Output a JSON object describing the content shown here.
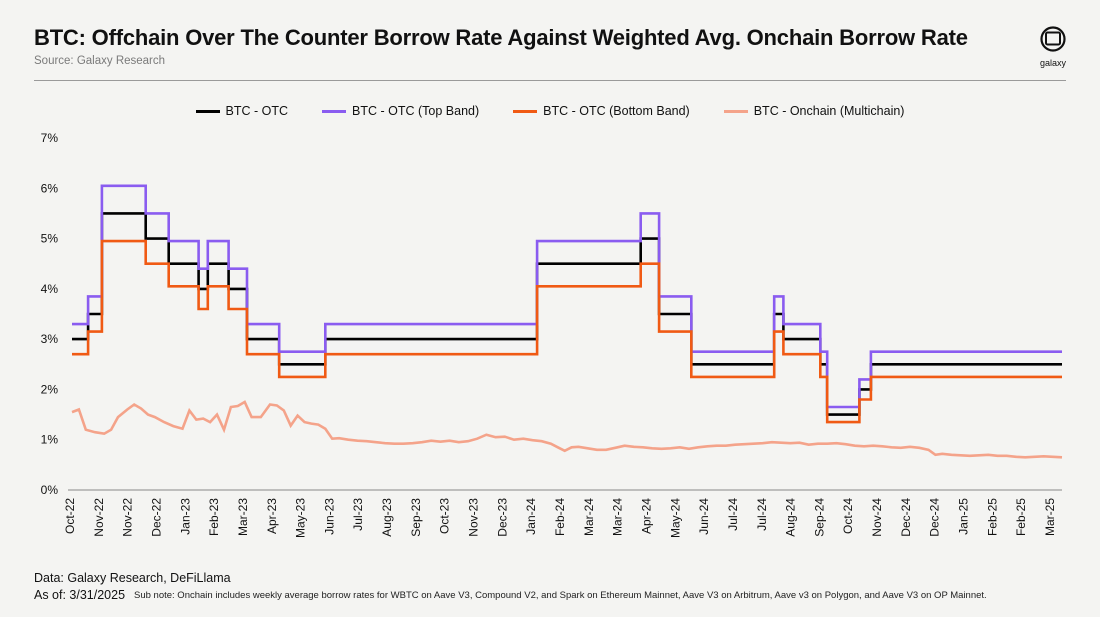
{
  "header": {
    "title": "BTC: Offchain Over The Counter Borrow Rate Against Weighted Avg. Onchain Borrow Rate",
    "source": "Source: Galaxy Research",
    "logo_text": "galaxy"
  },
  "footer": {
    "data_line": "Data: Galaxy Research, DeFiLlama",
    "as_of": "As of: 3/31/2025",
    "sub_note": "Sub note: Onchain includes weekly average borrow rates for WBTC on Aave V3, Compound V2, and Spark on Ethereum Mainnet, Aave V3 on Arbitrum, Aave v3 on Polygon, and Aave V3 on OP Mainnet."
  },
  "chart_data": {
    "type": "line",
    "title": "BTC: Offchain Over The Counter Borrow Rate Against Weighted Avg. Onchain Borrow Rate",
    "xlabel": "",
    "ylabel": "",
    "ylim": [
      0,
      7
    ],
    "y_ticks": [
      "0%",
      "1%",
      "2%",
      "3%",
      "4%",
      "5%",
      "6%",
      "7%"
    ],
    "x_ticks": [
      "Oct-22",
      "Nov-22",
      "Nov-22",
      "Dec-22",
      "Jan-23",
      "Feb-23",
      "Mar-23",
      "Apr-23",
      "May-23",
      "Jun-23",
      "Jul-23",
      "Aug-23",
      "Sep-23",
      "Oct-23",
      "Nov-23",
      "Dec-23",
      "Jan-24",
      "Feb-24",
      "Mar-24",
      "Mar-24",
      "Apr-24",
      "May-24",
      "Jun-24",
      "Jul-24",
      "Jul-24",
      "Aug-24",
      "Sep-24",
      "Oct-24",
      "Nov-24",
      "Dec-24",
      "Dec-24",
      "Jan-25",
      "Feb-25",
      "Feb-25",
      "Mar-25"
    ],
    "legend_position": "top-center",
    "grid": false,
    "series": [
      {
        "name": "BTC - OTC",
        "color": "#000000",
        "steps": [
          [
            0,
            3.0
          ],
          [
            0.7,
            3.5
          ],
          [
            1.3,
            5.5
          ],
          [
            3.2,
            5.0
          ],
          [
            4.2,
            4.5
          ],
          [
            5.5,
            4.0
          ],
          [
            5.9,
            4.5
          ],
          [
            6.8,
            4.0
          ],
          [
            7.6,
            3.0
          ],
          [
            9.0,
            2.5
          ],
          [
            11.0,
            3.0
          ],
          [
            20.2,
            4.5
          ],
          [
            24.7,
            5.0
          ],
          [
            25.5,
            3.5
          ],
          [
            26.9,
            2.5
          ],
          [
            30.5,
            3.5
          ],
          [
            30.9,
            3.0
          ],
          [
            32.5,
            2.5
          ],
          [
            32.8,
            1.5
          ],
          [
            34.2,
            2.0
          ],
          [
            34.7,
            2.5
          ],
          [
            43.0,
            2.5
          ]
        ]
      },
      {
        "name": "BTC - OTC (Top Band)",
        "color": "#8a5cf0",
        "steps": [
          [
            0,
            3.3
          ],
          [
            0.7,
            3.85
          ],
          [
            1.3,
            6.05
          ],
          [
            3.2,
            5.5
          ],
          [
            4.2,
            4.95
          ],
          [
            5.5,
            4.4
          ],
          [
            5.9,
            4.95
          ],
          [
            6.8,
            4.4
          ],
          [
            7.6,
            3.3
          ],
          [
            9.0,
            2.75
          ],
          [
            11.0,
            3.3
          ],
          [
            20.2,
            4.95
          ],
          [
            24.7,
            5.5
          ],
          [
            25.5,
            3.85
          ],
          [
            26.9,
            2.75
          ],
          [
            30.5,
            3.85
          ],
          [
            30.9,
            3.3
          ],
          [
            32.5,
            2.75
          ],
          [
            32.8,
            1.65
          ],
          [
            34.2,
            2.2
          ],
          [
            34.7,
            2.75
          ],
          [
            43.0,
            2.75
          ]
        ]
      },
      {
        "name": "BTC - OTC (Bottom Band)",
        "color": "#f05a14",
        "steps": [
          [
            0,
            2.7
          ],
          [
            0.7,
            3.15
          ],
          [
            1.3,
            4.95
          ],
          [
            3.2,
            4.5
          ],
          [
            4.2,
            4.05
          ],
          [
            5.5,
            3.6
          ],
          [
            5.9,
            4.05
          ],
          [
            6.8,
            3.6
          ],
          [
            7.6,
            2.7
          ],
          [
            9.0,
            2.25
          ],
          [
            11.0,
            2.7
          ],
          [
            20.2,
            4.05
          ],
          [
            24.7,
            4.5
          ],
          [
            25.5,
            3.15
          ],
          [
            26.9,
            2.25
          ],
          [
            30.5,
            3.15
          ],
          [
            30.9,
            2.7
          ],
          [
            32.5,
            2.25
          ],
          [
            32.8,
            1.35
          ],
          [
            34.2,
            1.8
          ],
          [
            34.7,
            2.25
          ],
          [
            43.0,
            2.25
          ]
        ]
      },
      {
        "name": "BTC - Onchain (Multichain)",
        "color": "#f4a38a",
        "points": [
          [
            0,
            1.55
          ],
          [
            0.3,
            1.6
          ],
          [
            0.6,
            1.2
          ],
          [
            1.0,
            1.15
          ],
          [
            1.4,
            1.12
          ],
          [
            1.7,
            1.2
          ],
          [
            2.0,
            1.45
          ],
          [
            2.4,
            1.6
          ],
          [
            2.7,
            1.7
          ],
          [
            3.0,
            1.62
          ],
          [
            3.3,
            1.5
          ],
          [
            3.6,
            1.45
          ],
          [
            4.0,
            1.35
          ],
          [
            4.4,
            1.27
          ],
          [
            4.8,
            1.22
          ],
          [
            5.1,
            1.58
          ],
          [
            5.4,
            1.4
          ],
          [
            5.7,
            1.42
          ],
          [
            6.0,
            1.35
          ],
          [
            6.3,
            1.5
          ],
          [
            6.6,
            1.2
          ],
          [
            6.9,
            1.65
          ],
          [
            7.2,
            1.67
          ],
          [
            7.5,
            1.75
          ],
          [
            7.8,
            1.45
          ],
          [
            8.2,
            1.45
          ],
          [
            8.6,
            1.7
          ],
          [
            8.9,
            1.68
          ],
          [
            9.2,
            1.58
          ],
          [
            9.5,
            1.28
          ],
          [
            9.8,
            1.48
          ],
          [
            10.1,
            1.35
          ],
          [
            10.4,
            1.32
          ],
          [
            10.7,
            1.3
          ],
          [
            11.0,
            1.22
          ],
          [
            11.3,
            1.02
          ],
          [
            11.6,
            1.03
          ],
          [
            12.0,
            1.0
          ],
          [
            12.4,
            0.98
          ],
          [
            12.8,
            0.97
          ],
          [
            13.2,
            0.95
          ],
          [
            13.6,
            0.93
          ],
          [
            14.0,
            0.92
          ],
          [
            14.4,
            0.92
          ],
          [
            14.8,
            0.93
          ],
          [
            15.2,
            0.95
          ],
          [
            15.6,
            0.98
          ],
          [
            16.0,
            0.96
          ],
          [
            16.4,
            0.98
          ],
          [
            16.8,
            0.95
          ],
          [
            17.2,
            0.97
          ],
          [
            17.6,
            1.02
          ],
          [
            18.0,
            1.1
          ],
          [
            18.4,
            1.05
          ],
          [
            18.8,
            1.06
          ],
          [
            19.2,
            1.0
          ],
          [
            19.6,
            1.02
          ],
          [
            20.0,
            0.99
          ],
          [
            20.4,
            0.97
          ],
          [
            20.8,
            0.92
          ],
          [
            21.1,
            0.85
          ],
          [
            21.4,
            0.78
          ],
          [
            21.7,
            0.85
          ],
          [
            22.0,
            0.86
          ],
          [
            22.4,
            0.83
          ],
          [
            22.8,
            0.8
          ],
          [
            23.2,
            0.8
          ],
          [
            23.6,
            0.84
          ],
          [
            24.0,
            0.88
          ],
          [
            24.4,
            0.86
          ],
          [
            24.8,
            0.85
          ],
          [
            25.2,
            0.83
          ],
          [
            25.6,
            0.82
          ],
          [
            26.0,
            0.83
          ],
          [
            26.4,
            0.85
          ],
          [
            26.8,
            0.82
          ],
          [
            27.2,
            0.85
          ],
          [
            27.6,
            0.87
          ],
          [
            28.0,
            0.88
          ],
          [
            28.4,
            0.88
          ],
          [
            28.8,
            0.9
          ],
          [
            29.2,
            0.91
          ],
          [
            29.6,
            0.92
          ],
          [
            30.0,
            0.93
          ],
          [
            30.4,
            0.95
          ],
          [
            30.8,
            0.94
          ],
          [
            31.2,
            0.93
          ],
          [
            31.6,
            0.94
          ],
          [
            32.0,
            0.9
          ],
          [
            32.4,
            0.92
          ],
          [
            32.8,
            0.92
          ],
          [
            33.2,
            0.93
          ],
          [
            33.6,
            0.91
          ],
          [
            34.0,
            0.88
          ],
          [
            34.4,
            0.87
          ],
          [
            34.8,
            0.88
          ],
          [
            35.2,
            0.87
          ],
          [
            35.6,
            0.85
          ],
          [
            36.0,
            0.84
          ],
          [
            36.4,
            0.86
          ],
          [
            36.8,
            0.84
          ],
          [
            37.2,
            0.8
          ],
          [
            37.5,
            0.7
          ],
          [
            37.8,
            0.72
          ],
          [
            38.2,
            0.7
          ],
          [
            38.6,
            0.69
          ],
          [
            39.0,
            0.68
          ],
          [
            39.4,
            0.69
          ],
          [
            39.8,
            0.7
          ],
          [
            40.2,
            0.68
          ],
          [
            40.6,
            0.68
          ],
          [
            41.0,
            0.66
          ],
          [
            41.4,
            0.65
          ],
          [
            41.8,
            0.66
          ],
          [
            42.2,
            0.67
          ],
          [
            42.6,
            0.66
          ],
          [
            43.0,
            0.65
          ]
        ]
      }
    ]
  }
}
